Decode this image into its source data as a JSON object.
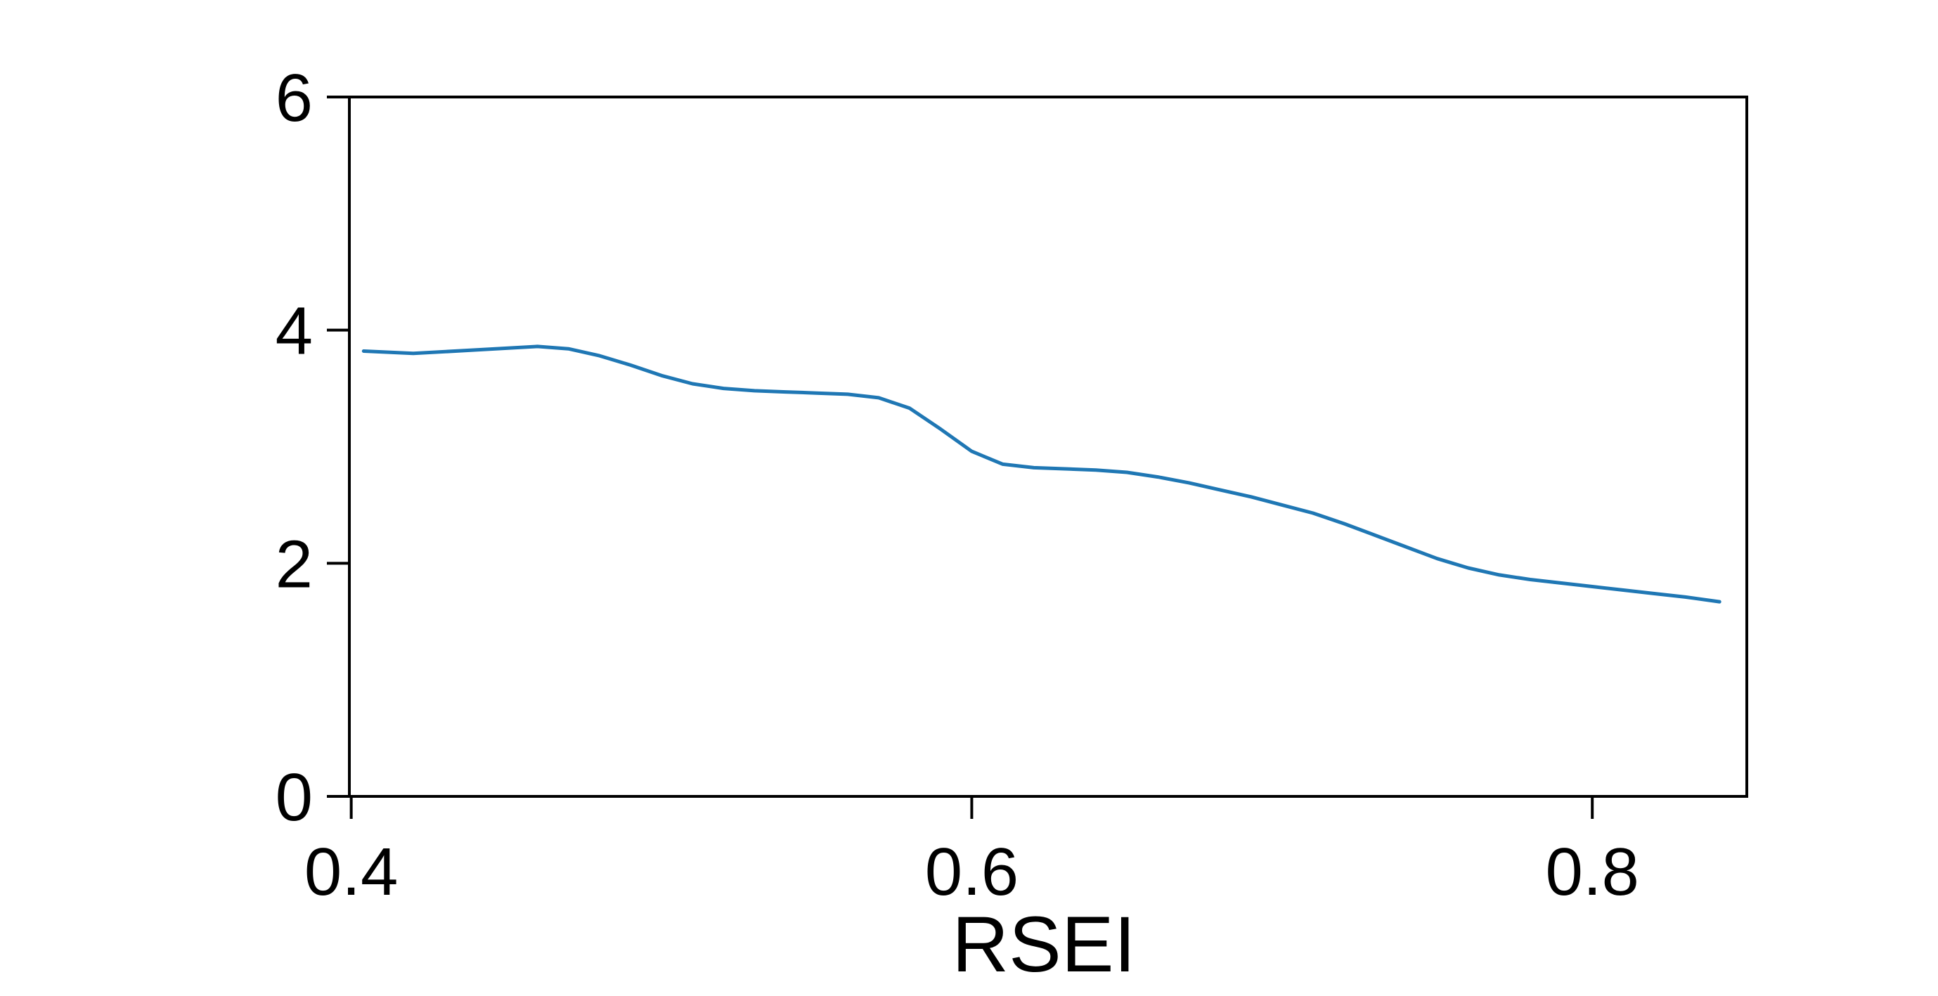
{
  "chart_data": {
    "type": "line",
    "title": "",
    "xlabel": "RSEI",
    "ylabel": "",
    "xlim": [
      0.3994,
      0.8498
    ],
    "ylim": [
      0,
      6
    ],
    "x_ticks": [
      "0.4",
      "0.6",
      "0.8"
    ],
    "y_ticks": [
      "0",
      "2",
      "4",
      "6"
    ],
    "grid": false,
    "legend": "none",
    "line_color": "#1f77b4",
    "series": [
      {
        "x": [
          0.404,
          0.42,
          0.44,
          0.46,
          0.47,
          0.48,
          0.49,
          0.5,
          0.51,
          0.52,
          0.53,
          0.54,
          0.55,
          0.56,
          0.57,
          0.58,
          0.59,
          0.6,
          0.61,
          0.62,
          0.63,
          0.64,
          0.65,
          0.66,
          0.67,
          0.68,
          0.69,
          0.7,
          0.71,
          0.72,
          0.73,
          0.74,
          0.75,
          0.76,
          0.77,
          0.78,
          0.79,
          0.8,
          0.81,
          0.82,
          0.83,
          0.841
        ],
        "y": [
          3.82,
          3.8,
          3.83,
          3.86,
          3.84,
          3.78,
          3.7,
          3.61,
          3.54,
          3.5,
          3.48,
          3.47,
          3.46,
          3.45,
          3.42,
          3.33,
          3.15,
          2.96,
          2.85,
          2.82,
          2.81,
          2.8,
          2.78,
          2.74,
          2.69,
          2.63,
          2.57,
          2.5,
          2.43,
          2.34,
          2.24,
          2.14,
          2.04,
          1.96,
          1.9,
          1.86,
          1.83,
          1.8,
          1.77,
          1.74,
          1.71,
          1.67
        ]
      }
    ]
  }
}
